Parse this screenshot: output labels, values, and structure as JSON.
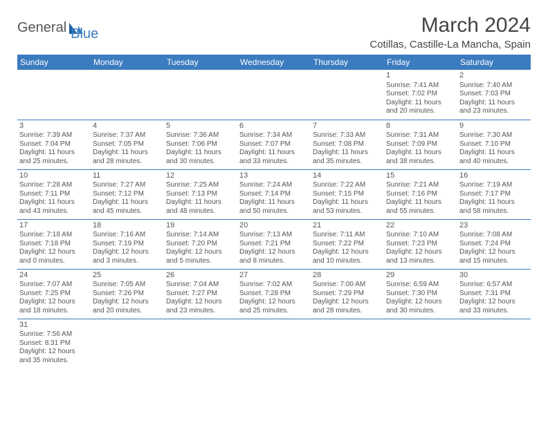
{
  "brand": {
    "textA": "General",
    "textB": "Blue"
  },
  "header": {
    "title": "March 2024",
    "location": "Cotillas, Castille-La Mancha, Spain"
  },
  "colors": {
    "accent": "#3b7bbf",
    "text": "#444444",
    "bg": "#ffffff"
  },
  "weekdays": [
    "Sunday",
    "Monday",
    "Tuesday",
    "Wednesday",
    "Thursday",
    "Friday",
    "Saturday"
  ],
  "weeks": [
    [
      null,
      null,
      null,
      null,
      null,
      {
        "n": "1",
        "sr": "Sunrise: 7:41 AM",
        "ss": "Sunset: 7:02 PM",
        "d1": "Daylight: 11 hours",
        "d2": "and 20 minutes."
      },
      {
        "n": "2",
        "sr": "Sunrise: 7:40 AM",
        "ss": "Sunset: 7:03 PM",
        "d1": "Daylight: 11 hours",
        "d2": "and 23 minutes."
      }
    ],
    [
      {
        "n": "3",
        "sr": "Sunrise: 7:39 AM",
        "ss": "Sunset: 7:04 PM",
        "d1": "Daylight: 11 hours",
        "d2": "and 25 minutes."
      },
      {
        "n": "4",
        "sr": "Sunrise: 7:37 AM",
        "ss": "Sunset: 7:05 PM",
        "d1": "Daylight: 11 hours",
        "d2": "and 28 minutes."
      },
      {
        "n": "5",
        "sr": "Sunrise: 7:36 AM",
        "ss": "Sunset: 7:06 PM",
        "d1": "Daylight: 11 hours",
        "d2": "and 30 minutes."
      },
      {
        "n": "6",
        "sr": "Sunrise: 7:34 AM",
        "ss": "Sunset: 7:07 PM",
        "d1": "Daylight: 11 hours",
        "d2": "and 33 minutes."
      },
      {
        "n": "7",
        "sr": "Sunrise: 7:33 AM",
        "ss": "Sunset: 7:08 PM",
        "d1": "Daylight: 11 hours",
        "d2": "and 35 minutes."
      },
      {
        "n": "8",
        "sr": "Sunrise: 7:31 AM",
        "ss": "Sunset: 7:09 PM",
        "d1": "Daylight: 11 hours",
        "d2": "and 38 minutes."
      },
      {
        "n": "9",
        "sr": "Sunrise: 7:30 AM",
        "ss": "Sunset: 7:10 PM",
        "d1": "Daylight: 11 hours",
        "d2": "and 40 minutes."
      }
    ],
    [
      {
        "n": "10",
        "sr": "Sunrise: 7:28 AM",
        "ss": "Sunset: 7:11 PM",
        "d1": "Daylight: 11 hours",
        "d2": "and 43 minutes."
      },
      {
        "n": "11",
        "sr": "Sunrise: 7:27 AM",
        "ss": "Sunset: 7:12 PM",
        "d1": "Daylight: 11 hours",
        "d2": "and 45 minutes."
      },
      {
        "n": "12",
        "sr": "Sunrise: 7:25 AM",
        "ss": "Sunset: 7:13 PM",
        "d1": "Daylight: 11 hours",
        "d2": "and 48 minutes."
      },
      {
        "n": "13",
        "sr": "Sunrise: 7:24 AM",
        "ss": "Sunset: 7:14 PM",
        "d1": "Daylight: 11 hours",
        "d2": "and 50 minutes."
      },
      {
        "n": "14",
        "sr": "Sunrise: 7:22 AM",
        "ss": "Sunset: 7:15 PM",
        "d1": "Daylight: 11 hours",
        "d2": "and 53 minutes."
      },
      {
        "n": "15",
        "sr": "Sunrise: 7:21 AM",
        "ss": "Sunset: 7:16 PM",
        "d1": "Daylight: 11 hours",
        "d2": "and 55 minutes."
      },
      {
        "n": "16",
        "sr": "Sunrise: 7:19 AM",
        "ss": "Sunset: 7:17 PM",
        "d1": "Daylight: 11 hours",
        "d2": "and 58 minutes."
      }
    ],
    [
      {
        "n": "17",
        "sr": "Sunrise: 7:18 AM",
        "ss": "Sunset: 7:18 PM",
        "d1": "Daylight: 12 hours",
        "d2": "and 0 minutes."
      },
      {
        "n": "18",
        "sr": "Sunrise: 7:16 AM",
        "ss": "Sunset: 7:19 PM",
        "d1": "Daylight: 12 hours",
        "d2": "and 3 minutes."
      },
      {
        "n": "19",
        "sr": "Sunrise: 7:14 AM",
        "ss": "Sunset: 7:20 PM",
        "d1": "Daylight: 12 hours",
        "d2": "and 5 minutes."
      },
      {
        "n": "20",
        "sr": "Sunrise: 7:13 AM",
        "ss": "Sunset: 7:21 PM",
        "d1": "Daylight: 12 hours",
        "d2": "and 8 minutes."
      },
      {
        "n": "21",
        "sr": "Sunrise: 7:11 AM",
        "ss": "Sunset: 7:22 PM",
        "d1": "Daylight: 12 hours",
        "d2": "and 10 minutes."
      },
      {
        "n": "22",
        "sr": "Sunrise: 7:10 AM",
        "ss": "Sunset: 7:23 PM",
        "d1": "Daylight: 12 hours",
        "d2": "and 13 minutes."
      },
      {
        "n": "23",
        "sr": "Sunrise: 7:08 AM",
        "ss": "Sunset: 7:24 PM",
        "d1": "Daylight: 12 hours",
        "d2": "and 15 minutes."
      }
    ],
    [
      {
        "n": "24",
        "sr": "Sunrise: 7:07 AM",
        "ss": "Sunset: 7:25 PM",
        "d1": "Daylight: 12 hours",
        "d2": "and 18 minutes."
      },
      {
        "n": "25",
        "sr": "Sunrise: 7:05 AM",
        "ss": "Sunset: 7:26 PM",
        "d1": "Daylight: 12 hours",
        "d2": "and 20 minutes."
      },
      {
        "n": "26",
        "sr": "Sunrise: 7:04 AM",
        "ss": "Sunset: 7:27 PM",
        "d1": "Daylight: 12 hours",
        "d2": "and 23 minutes."
      },
      {
        "n": "27",
        "sr": "Sunrise: 7:02 AM",
        "ss": "Sunset: 7:28 PM",
        "d1": "Daylight: 12 hours",
        "d2": "and 25 minutes."
      },
      {
        "n": "28",
        "sr": "Sunrise: 7:00 AM",
        "ss": "Sunset: 7:29 PM",
        "d1": "Daylight: 12 hours",
        "d2": "and 28 minutes."
      },
      {
        "n": "29",
        "sr": "Sunrise: 6:59 AM",
        "ss": "Sunset: 7:30 PM",
        "d1": "Daylight: 12 hours",
        "d2": "and 30 minutes."
      },
      {
        "n": "30",
        "sr": "Sunrise: 6:57 AM",
        "ss": "Sunset: 7:31 PM",
        "d1": "Daylight: 12 hours",
        "d2": "and 33 minutes."
      }
    ],
    [
      {
        "n": "31",
        "sr": "Sunrise: 7:56 AM",
        "ss": "Sunset: 8:31 PM",
        "d1": "Daylight: 12 hours",
        "d2": "and 35 minutes."
      },
      null,
      null,
      null,
      null,
      null,
      null
    ]
  ]
}
